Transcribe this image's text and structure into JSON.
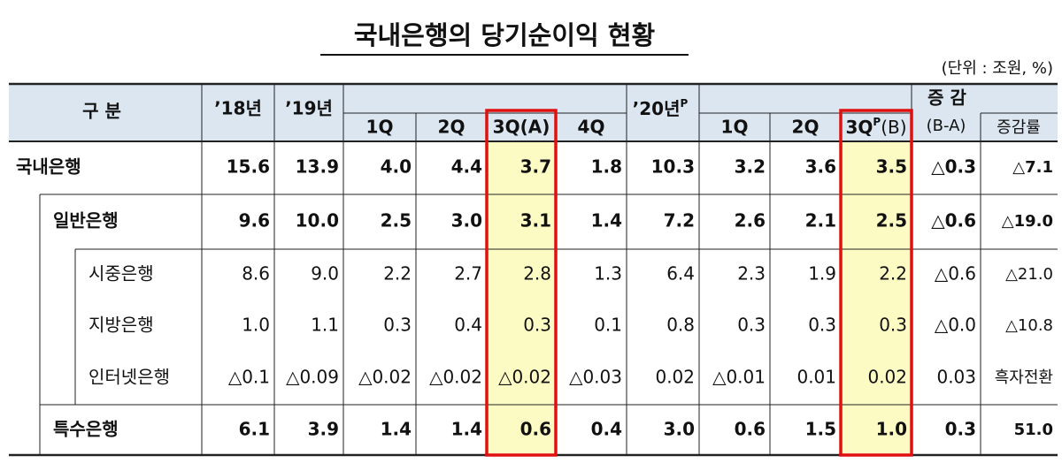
{
  "header": {
    "title": "국내은행의 당기순이익 현황",
    "unit": "(단위 : 조원, %)"
  },
  "table": {
    "columns": {
      "category": "구 분",
      "y18": "’18년",
      "y19": "’19년",
      "q19": [
        "1Q",
        "2Q",
        "3Q(A)",
        "4Q"
      ],
      "y20": "’20년",
      "y20_sup": "P",
      "q20": [
        "1Q",
        "2Q"
      ],
      "q20_3": {
        "main": "3Q",
        "sup": "P",
        "suffix": "(B)"
      },
      "change": "증 감",
      "change_diff": "(B-A)",
      "change_rate": "증감률"
    },
    "rows": [
      {
        "label": "국내은행",
        "cells": [
          "15.6",
          "13.9",
          "4.0",
          "4.4",
          "3.7",
          "1.8",
          "10.3",
          "3.2",
          "3.6",
          "3.5",
          "△0.3",
          "△7.1"
        ]
      },
      {
        "label": "일반은행",
        "cells": [
          "9.6",
          "10.0",
          "2.5",
          "3.0",
          "3.1",
          "1.4",
          "7.2",
          "2.6",
          "2.1",
          "2.5",
          "△0.6",
          "△19.0"
        ]
      },
      {
        "label": "시중은행",
        "cells": [
          "8.6",
          "9.0",
          "2.2",
          "2.7",
          "2.8",
          "1.3",
          "6.4",
          "2.3",
          "1.9",
          "2.2",
          "△0.6",
          "△21.0"
        ]
      },
      {
        "label": "지방은행",
        "cells": [
          "1.0",
          "1.1",
          "0.3",
          "0.4",
          "0.3",
          "0.1",
          "0.8",
          "0.3",
          "0.3",
          "0.3",
          "△0.0",
          "△10.8"
        ]
      },
      {
        "label": "인터넷은행",
        "cells": [
          "△0.1",
          "△0.09",
          "△0.02",
          "△0.02",
          "△0.02",
          "△0.03",
          "0.02",
          "△0.01",
          "0.01",
          "0.02",
          "0.03",
          "흑자전환"
        ]
      },
      {
        "label": "특수은행",
        "cells": [
          "6.1",
          "3.9",
          "1.4",
          "1.4",
          "0.6",
          "0.4",
          "3.0",
          "0.6",
          "1.5",
          "1.0",
          "0.3",
          "51.0"
        ]
      }
    ]
  }
}
